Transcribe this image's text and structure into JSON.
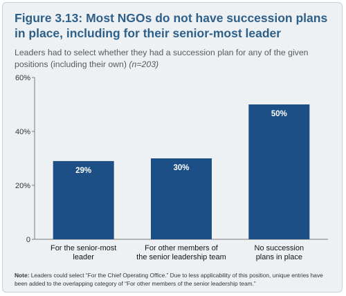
{
  "title": "Figure 3.13: Most NGOs do not have succession plans in place, including for their senior-most leader",
  "subtitle": {
    "text": "Leaders had to select whether they had a succession plan for any of the given positions (including their own)",
    "sample": "(n=203)"
  },
  "chart_data": {
    "type": "bar",
    "categories": [
      [
        "For the senior-most",
        "leader"
      ],
      [
        "For other members of",
        "the senior leadership team"
      ],
      [
        "No succession",
        "plans in place"
      ]
    ],
    "values": [
      29,
      30,
      50
    ],
    "data_labels": [
      "29%",
      "30%",
      "50%"
    ],
    "yticks": [
      "0",
      "20%",
      "40%",
      "60%"
    ],
    "ylim": [
      0,
      60
    ],
    "bar_color": "#1c4f85",
    "grid": false
  },
  "note": {
    "label": "Note:",
    "text": "Leaders could select “For the Chief Operating Office.” Due to less applicability of this position, unique entries have been added to the overlapping category of “For other members of the senior leadership team.”"
  }
}
